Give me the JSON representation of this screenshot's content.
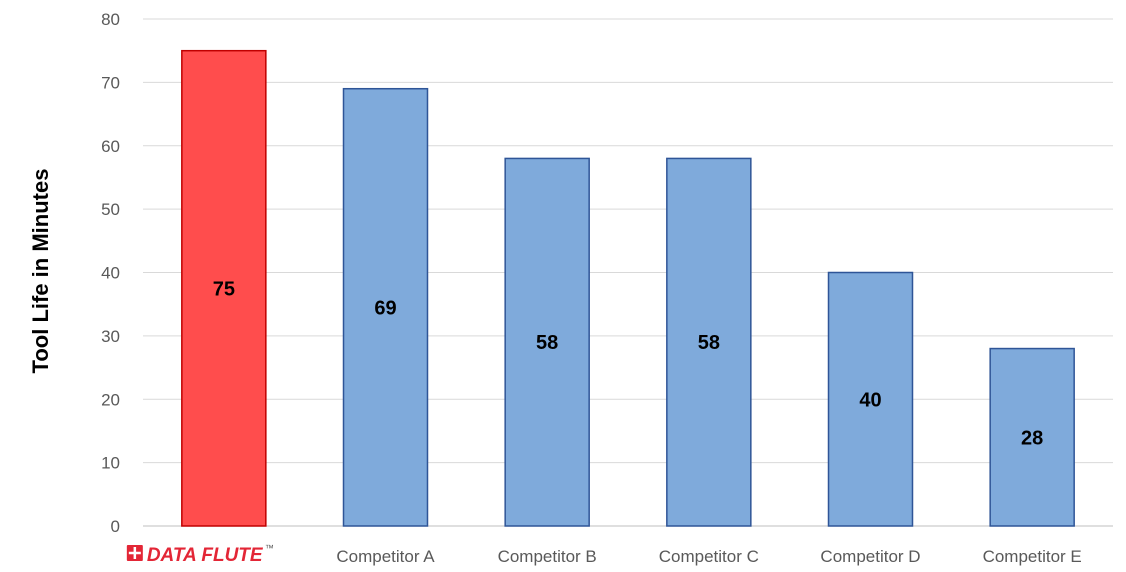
{
  "chart_data": {
    "type": "bar",
    "categories": [
      "DATA FLUTE",
      "Competitor A",
      "Competitor B",
      "Competitor C",
      "Competitor D",
      "Competitor E"
    ],
    "values": [
      75,
      69,
      58,
      58,
      40,
      28
    ],
    "data_labels": [
      "75",
      "69",
      "58",
      "58",
      "40",
      "28"
    ],
    "title": "",
    "xlabel": "",
    "ylabel": "Tool Life in Minutes",
    "ylim": [
      0,
      80
    ],
    "yticks": [
      0,
      10,
      20,
      30,
      40,
      50,
      60,
      70,
      80
    ],
    "ytick_labels": [
      "0",
      "10",
      "20",
      "30",
      "40",
      "50",
      "60",
      "70",
      "80"
    ],
    "grid": true,
    "legend": "none",
    "colors": [
      "#ff4d4d",
      "#7faadb",
      "#7faadb",
      "#7faadb",
      "#7faadb",
      "#7faadb"
    ],
    "edge_colors": [
      "#c00000",
      "#2f5597",
      "#2f5597",
      "#2f5597",
      "#2f5597",
      "#2f5597"
    ]
  },
  "brand": {
    "name": "DATA FLUTE",
    "trademark": "™",
    "color": "#e32636"
  },
  "colors": {
    "grid": "#d9d9d9",
    "axis": "#bfbfbf"
  }
}
